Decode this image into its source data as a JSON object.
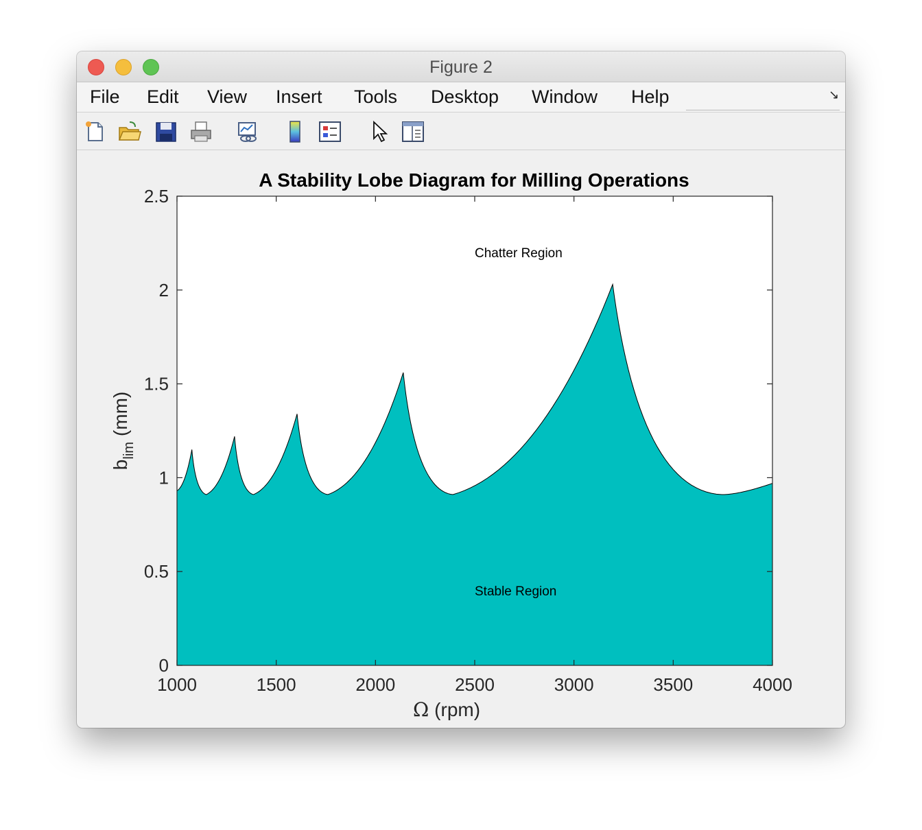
{
  "window": {
    "title": "Figure 2"
  },
  "menu": [
    "File",
    "Edit",
    "View",
    "Insert",
    "Tools",
    "Desktop",
    "Window",
    "Help"
  ],
  "toolbar": [
    "new-figure-icon",
    "open-file-icon",
    "save-icon",
    "print-icon",
    "link-plot-icon",
    "colorbar-icon",
    "legend-icon",
    "pointer-icon",
    "property-inspector-icon"
  ],
  "colors": {
    "fill": "#00bfbf",
    "edge": "#000000",
    "axes_background": "#ffffff",
    "figure_background": "#f0f0f0"
  },
  "chart_data": {
    "type": "area",
    "title": "A Stability Lobe Diagram for Milling Operations",
    "xlabel_symbol": "Ω",
    "xlabel_rest": "(rpm)",
    "ylabel_main": "b",
    "ylabel_sub": "lim",
    "ylabel_unit": "(mm)",
    "xlim": [
      1000,
      4000
    ],
    "ylim": [
      0,
      2.5
    ],
    "xticks": [
      1000,
      1500,
      2000,
      2500,
      3000,
      3500,
      4000
    ],
    "xtick_labels": [
      "1000",
      "1500",
      "2000",
      "2500",
      "3000",
      "3500",
      "4000"
    ],
    "yticks": [
      0,
      0.5,
      1,
      1.5,
      2,
      2.5
    ],
    "ytick_labels": [
      "0",
      "0.5",
      "1",
      "1.5",
      "2",
      "2.5"
    ],
    "grid": false,
    "lobes": [
      {
        "start": [
          1000,
          0.93
        ],
        "cusp": [
          1075,
          1.15
        ],
        "min": [
          1147,
          0.91
        ]
      },
      {
        "start": [
          1147,
          0.91
        ],
        "cusp": [
          1290,
          1.22
        ],
        "min": [
          1385,
          0.91
        ]
      },
      {
        "start": [
          1385,
          0.91
        ],
        "cusp": [
          1605,
          1.34
        ],
        "min": [
          1760,
          0.91
        ]
      },
      {
        "start": [
          1760,
          0.91
        ],
        "cusp": [
          2140,
          1.56
        ],
        "min": [
          2390,
          0.91
        ]
      },
      {
        "start": [
          2390,
          0.91
        ],
        "cusp": [
          3195,
          2.03
        ],
        "min": [
          3745,
          0.91
        ]
      },
      {
        "start": [
          3745,
          0.91
        ],
        "end": [
          4000,
          0.97
        ]
      }
    ],
    "annotations": [
      {
        "text": "Chatter Region",
        "x": 2500,
        "y": 2.2
      },
      {
        "text": "Stable Region",
        "x": 2500,
        "y": 0.4
      }
    ]
  }
}
